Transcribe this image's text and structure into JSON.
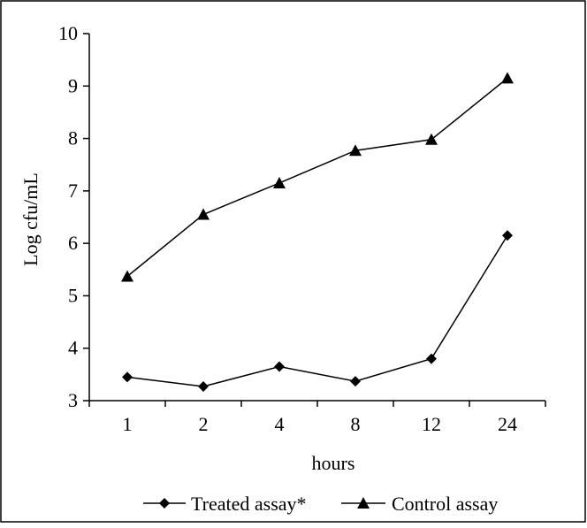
{
  "chart_data": {
    "type": "line",
    "title": "",
    "xlabel": "hours",
    "ylabel": "Log cfu/mL",
    "categories": [
      "1",
      "2",
      "4",
      "8",
      "12",
      "24"
    ],
    "ylim": [
      3,
      10
    ],
    "yticks": [
      3,
      4,
      5,
      6,
      7,
      8,
      9,
      10
    ],
    "grid": false,
    "legend_position": "bottom",
    "series": [
      {
        "name": "Treated assay*",
        "marker": "diamond",
        "values": [
          3.45,
          3.27,
          3.65,
          3.37,
          3.8,
          6.15
        ]
      },
      {
        "name": "Control assay",
        "marker": "triangle",
        "values": [
          5.37,
          6.55,
          7.15,
          7.77,
          7.98,
          9.15
        ]
      }
    ]
  }
}
